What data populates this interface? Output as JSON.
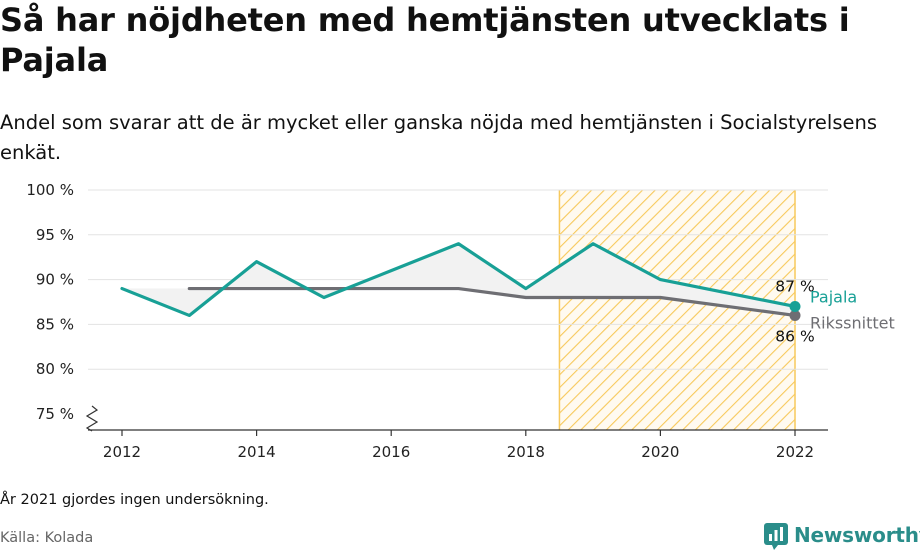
{
  "title": "Så har nöjdheten med hemtjänsten utvecklats i Pajala",
  "subtitle": "Andel som svarar att de är mycket eller ganska nöjda med hemtjänsten i Socialstyrelsens enkät.",
  "footnote": "År 2021 gjordes ingen undersökning.",
  "source": "Källa: Kolada",
  "brand": "Newsworthy",
  "colors": {
    "pajala": "#18a096",
    "riks": "#6e6e73",
    "hatch": "#f7c95c",
    "fill": "#f2f2f2"
  },
  "chart_data": {
    "type": "line",
    "x_ticks": [
      2012,
      2014,
      2016,
      2018,
      2020,
      2022
    ],
    "y_ticks": [
      75,
      80,
      85,
      90,
      95,
      100
    ],
    "y_tick_labels": [
      "75 %",
      "80 %",
      "85 %",
      "90 %",
      "95 %",
      "100 %"
    ],
    "xlim": [
      2012,
      2022
    ],
    "ylim": [
      75,
      100
    ],
    "grid": true,
    "y_axis_break": true,
    "highlight_range": [
      2018.5,
      2022
    ],
    "series": [
      {
        "name": "Pajala",
        "x": [
          2012,
          2013,
          2014,
          2015,
          2016,
          2017,
          2018,
          2019,
          2020,
          2022
        ],
        "values": [
          89,
          86,
          92,
          88,
          91,
          94,
          89,
          94,
          90,
          87
        ],
        "end_label": "87 %"
      },
      {
        "name": "Rikssnittet",
        "x": [
          2013,
          2014,
          2015,
          2016,
          2017,
          2018,
          2019,
          2020,
          2022
        ],
        "values": [
          89,
          89,
          89,
          89,
          89,
          88,
          88,
          88,
          86
        ],
        "end_label": "86 %"
      }
    ]
  }
}
